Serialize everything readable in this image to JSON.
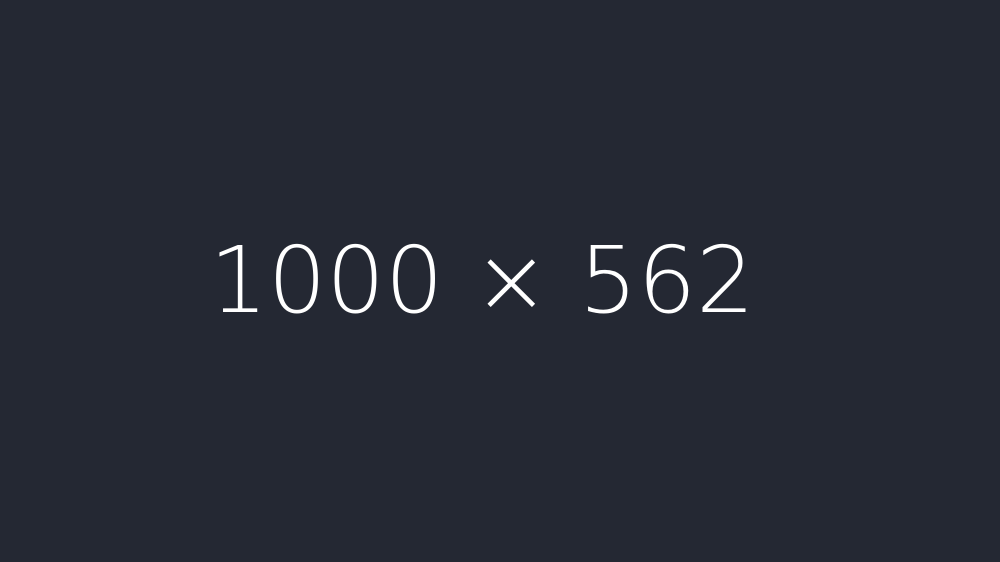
{
  "placeholder": {
    "text": "1000 × 562",
    "background_color": "#242833",
    "text_color": "#ffffff"
  }
}
